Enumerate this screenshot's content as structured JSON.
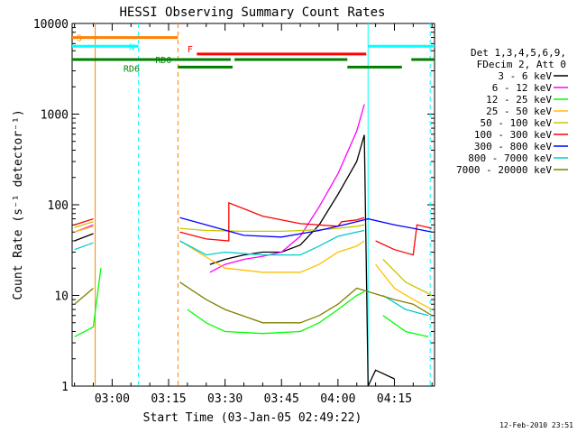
{
  "chart_data": {
    "type": "line",
    "title": "HESSI Observing Summary Count Rates",
    "xlabel": "Start Time (03-Jan-05 02:49:22)",
    "ylabel": "Count Rate (s⁻¹ detector⁻¹)",
    "y_scale": "log",
    "ylim": [
      1,
      10000
    ],
    "xlim": [
      "02:49:22",
      "04:25:40"
    ],
    "x_ticks": [
      "03:00",
      "03:15",
      "03:30",
      "03:45",
      "04:00",
      "04:15"
    ],
    "y_ticks": [
      "1",
      "10",
      "100",
      "1000",
      "10000"
    ],
    "legend_title": [
      "Det 1,3,4,5,6,9,",
      "FDecim 2, Att 0"
    ],
    "legend_position": "right",
    "footer_date": "12-Feb-2010 23:51",
    "colors": {
      "s_flag": "#ff8000",
      "n_flag": "#00ffff",
      "f_flag": "#ff0000",
      "rd_flag": "#008000"
    },
    "flag_labels": {
      "s": "S",
      "n": "N",
      "f": "F",
      "rd0": "RD0",
      "rd6": "RD6"
    },
    "flags": {
      "s": [
        [
          "02:49:22",
          "03:17:30"
        ]
      ],
      "n": [
        [
          "02:49:22",
          "03:07:00"
        ],
        [
          "04:08:00",
          "04:25:40"
        ]
      ],
      "f": [
        [
          "03:22:30",
          "04:07:30"
        ]
      ],
      "rd0": [
        [
          "02:49:22",
          "03:31:30"
        ],
        [
          "03:32:30",
          "04:02:30"
        ],
        [
          "04:19:30",
          "04:25:40"
        ]
      ],
      "rd6": [
        [
          "03:17:30",
          "03:32:00"
        ],
        [
          "04:02:30",
          "04:17:00"
        ]
      ]
    },
    "vlines": [
      {
        "time": "02:55:30",
        "color": "#ff8000",
        "style": "solid"
      },
      {
        "time": "03:07:00",
        "color": "#00ffff",
        "style": "dashed"
      },
      {
        "time": "03:17:30",
        "color": "#ff8000",
        "style": "dashed"
      },
      {
        "time": "04:08:00",
        "color": "#00ffff",
        "style": "solid"
      },
      {
        "time": "04:24:30",
        "color": "#00ffff",
        "style": "dashed"
      }
    ],
    "series": [
      {
        "name": "3 - 6 keV",
        "color": "#000000",
        "points": [
          [
            "02:50",
            40
          ],
          [
            "02:55",
            48
          ],
          [
            "03:17",
            null
          ],
          [
            "03:26",
            22
          ],
          [
            "03:30",
            25
          ],
          [
            "03:35",
            28
          ],
          [
            "03:40",
            30
          ],
          [
            "03:45",
            30
          ],
          [
            "03:50",
            36
          ],
          [
            "03:55",
            60
          ],
          [
            "04:00",
            130
          ],
          [
            "04:05",
            300
          ],
          [
            "04:07",
            590
          ],
          [
            "04:08",
            1
          ],
          [
            "04:10",
            1.5
          ],
          [
            "04:15",
            1.2
          ]
        ]
      },
      {
        "name": "6 - 12 keV",
        "color": "#ff00ff",
        "points": [
          [
            "02:50",
            50
          ],
          [
            "02:55",
            60
          ],
          [
            "03:17",
            null
          ],
          [
            "03:26",
            18
          ],
          [
            "03:30",
            22
          ],
          [
            "03:35",
            25
          ],
          [
            "03:40",
            27
          ],
          [
            "03:45",
            30
          ],
          [
            "03:50",
            45
          ],
          [
            "03:55",
            95
          ],
          [
            "04:00",
            220
          ],
          [
            "04:05",
            650
          ],
          [
            "04:07",
            1280
          ],
          [
            "04:08",
            null
          ]
        ]
      },
      {
        "name": "12 - 25 keV",
        "color": "#00ff00",
        "points": [
          [
            "02:50",
            3.5
          ],
          [
            "02:55",
            4.5
          ],
          [
            "02:57",
            20
          ],
          [
            "03:17",
            null
          ],
          [
            "03:20",
            7
          ],
          [
            "03:25",
            5
          ],
          [
            "03:30",
            4
          ],
          [
            "03:40",
            3.8
          ],
          [
            "03:50",
            4
          ],
          [
            "03:55",
            5
          ],
          [
            "04:00",
            7
          ],
          [
            "04:05",
            10
          ],
          [
            "04:07",
            11
          ],
          [
            "04:08",
            null
          ],
          [
            "04:12",
            6
          ],
          [
            "04:18",
            4
          ],
          [
            "04:24",
            3.5
          ]
        ]
      },
      {
        "name": "25 - 50 keV",
        "color": "#ffc000",
        "points": [
          [
            "02:50",
            50
          ],
          [
            "02:55",
            58
          ],
          [
            "03:17",
            null
          ],
          [
            "03:18",
            40
          ],
          [
            "03:26",
            25
          ],
          [
            "03:30",
            20
          ],
          [
            "03:40",
            18
          ],
          [
            "03:50",
            18
          ],
          [
            "03:55",
            22
          ],
          [
            "04:00",
            30
          ],
          [
            "04:05",
            35
          ],
          [
            "04:07",
            40
          ],
          [
            "04:08",
            null
          ],
          [
            "04:10",
            22
          ],
          [
            "04:15",
            12
          ],
          [
            "04:20",
            9
          ],
          [
            "04:25",
            7
          ]
        ]
      },
      {
        "name": "50 - 100 keV",
        "color": "#c8c800",
        "points": [
          [
            "02:50",
            56
          ],
          [
            "02:55",
            65
          ],
          [
            "03:17",
            null
          ],
          [
            "03:18",
            55
          ],
          [
            "03:25",
            52
          ],
          [
            "03:35",
            51
          ],
          [
            "03:45",
            51
          ],
          [
            "03:55",
            53
          ],
          [
            "04:00",
            55
          ],
          [
            "04:05",
            58
          ],
          [
            "04:07",
            60
          ],
          [
            "04:08",
            null
          ],
          [
            "04:12",
            25
          ],
          [
            "04:18",
            14
          ],
          [
            "04:25",
            10
          ]
        ]
      },
      {
        "name": "100 - 300 keV",
        "color": "#ff0000",
        "points": [
          [
            "02:50",
            60
          ],
          [
            "02:55",
            70
          ],
          [
            "03:17",
            null
          ],
          [
            "03:18",
            50
          ],
          [
            "03:25",
            42
          ],
          [
            "03:31",
            40
          ],
          [
            "03:31",
            105
          ],
          [
            "03:40",
            75
          ],
          [
            "03:50",
            62
          ],
          [
            "04:00",
            58
          ],
          [
            "04:01",
            65
          ],
          [
            "04:05",
            68
          ],
          [
            "04:07",
            72
          ],
          [
            "04:08",
            null
          ],
          [
            "04:10",
            40
          ],
          [
            "04:15",
            32
          ],
          [
            "04:20",
            28
          ],
          [
            "04:21",
            60
          ],
          [
            "04:25",
            55
          ]
        ]
      },
      {
        "name": "300 - 800 keV",
        "color": "#0000ff",
        "points": [
          [
            "03:18",
            72
          ],
          [
            "03:25",
            60
          ],
          [
            "03:35",
            46
          ],
          [
            "03:45",
            44
          ],
          [
            "03:55",
            52
          ],
          [
            "04:00",
            58
          ],
          [
            "04:05",
            65
          ],
          [
            "04:08",
            70
          ],
          [
            "04:15",
            60
          ],
          [
            "04:20",
            55
          ],
          [
            "04:25",
            50
          ]
        ]
      },
      {
        "name": "800 - 7000 keV",
        "color": "#00cccc",
        "points": [
          [
            "02:50",
            32
          ],
          [
            "02:55",
            38
          ],
          [
            "03:17",
            null
          ],
          [
            "03:18",
            40
          ],
          [
            "03:25",
            28
          ],
          [
            "03:30",
            30
          ],
          [
            "03:40",
            28
          ],
          [
            "03:50",
            28
          ],
          [
            "03:55",
            35
          ],
          [
            "04:00",
            45
          ],
          [
            "04:05",
            50
          ],
          [
            "04:07",
            52
          ],
          [
            "04:08",
            null
          ],
          [
            "04:12",
            10
          ],
          [
            "04:18",
            7
          ],
          [
            "04:24",
            6
          ]
        ]
      },
      {
        "name": "7000 - 20000 keV",
        "color": "#808000",
        "points": [
          [
            "02:50",
            8
          ],
          [
            "02:55",
            12
          ],
          [
            "03:17",
            null
          ],
          [
            "03:18",
            14
          ],
          [
            "03:25",
            9
          ],
          [
            "03:30",
            7
          ],
          [
            "03:40",
            5
          ],
          [
            "03:50",
            5
          ],
          [
            "03:55",
            6
          ],
          [
            "04:00",
            8
          ],
          [
            "04:05",
            12
          ],
          [
            "04:08",
            11
          ],
          [
            "04:15",
            9
          ],
          [
            "04:20",
            8
          ],
          [
            "04:25",
            6
          ]
        ]
      }
    ]
  }
}
